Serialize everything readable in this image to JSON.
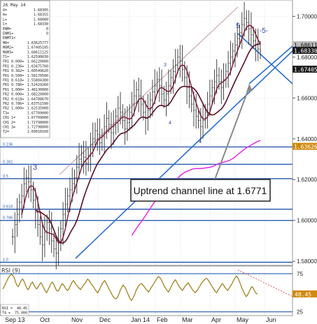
{
  "chart_data": {
    "type": "line",
    "instrument": "",
    "date_label": "26 May 14",
    "x_tick_labels": [
      "Sep 13",
      "Oct",
      "Nov",
      "Dec",
      "Jan 14",
      "Feb",
      "Mar",
      "Apr",
      "May",
      "Jun"
    ],
    "price_axis": {
      "ylim": [
        1.578,
        1.708
      ],
      "ticks": [
        "1.58000",
        "1.60000",
        "1.62000",
        "1.64000",
        "1.66000",
        "1.68000",
        "1.70000"
      ],
      "tick_values": [
        1.58,
        1.6,
        1.62,
        1.64,
        1.66,
        1.68,
        1.7
      ]
    },
    "price_tags": [
      {
        "label": "1.68611",
        "value": 1.6861,
        "style": "grey"
      },
      {
        "label": "1.68330",
        "value": 1.6833,
        "style": "dark"
      },
      {
        "label": "1.67405",
        "value": 1.6741,
        "style": "dark"
      },
      {
        "label": "1.63626",
        "value": 1.6363,
        "style": "orange"
      }
    ],
    "annotation": "Uptrend channel line at 1.6771",
    "wave_labels": [
      "3",
      "5",
      "-5-",
      "3",
      "4",
      "4"
    ],
    "fib_levels": [
      {
        "label": "0.236",
        "value": 1.636
      },
      {
        "label": "0.382",
        "value": 1.6275
      },
      {
        "label": "0.5",
        "value": 1.6205
      },
      {
        "label": "0.618",
        "value": 1.6055
      },
      {
        "label": "0.786",
        "value": 1.6
      },
      {
        "label": "1.0",
        "value": 1.5795
      }
    ],
    "info_panel": [
      {
        "k": "O=",
        "v": "1.68305"
      },
      {
        "k": "H=",
        "v": "1.68355"
      },
      {
        "k": "L=",
        "v": "1.68080"
      },
      {
        "k": "C=",
        "v": "1.68330"
      },
      {
        "k": "ENM=",
        "v": "0"
      },
      {
        "k": "ENM1=",
        "v": "0"
      },
      {
        "k": "ENMT1=",
        "v": ""
      },
      {
        "k": "MA=",
        "v": "1.63625777"
      },
      {
        "k": "MAM2=",
        "v": "1.67405105"
      },
      {
        "k": "MAM3=",
        "v": "1.68611125"
      },
      {
        "k": "T1=",
        "v": "1.62590030"
      },
      {
        "k": "FR1 0.000=",
        "v": "1.66220000"
      },
      {
        "k": "FR1 0.236=",
        "v": "1.63475760"
      },
      {
        "k": "FR1 0.382=",
        "v": "1.60549620"
      },
      {
        "k": "FR1 0.500=",
        "v": "1.58170500"
      },
      {
        "k": "FR1 0.618=",
        "v": "1.55804380"
      },
      {
        "k": "FR1 0.786=",
        "v": "1.52429260"
      },
      {
        "k": "FR1 1.000=",
        "v": "1.48130000"
      },
      {
        "k": "FR2 0.000=",
        "v": "1.68220000"
      },
      {
        "k": "FR2 0.618=",
        "v": "1.64708670"
      },
      {
        "k": "FR2 0.786=",
        "v": "1.63751590"
      },
      {
        "k": "FR2 1.000=",
        "v": "1.62535000"
      },
      {
        "k": "T3=",
        "v": "1.67709000"
      },
      {
        "k": "CH1 1=",
        "v": "1.67709000"
      },
      {
        "k": "CH1 2=",
        "v": "1.72798000"
      },
      {
        "k": "CH1 3=",
        "v": "1.72798000"
      },
      {
        "k": "T2=",
        "v": "1.69018160"
      }
    ],
    "rsi": {
      "title": "RSI (9)",
      "ylim": [
        20,
        85
      ],
      "ticks": [
        "25",
        "75"
      ],
      "tick_values": [
        25,
        75
      ],
      "current_tag": "48.45",
      "current_value": 48.45,
      "info": [
        {
          "k": "RSI =",
          "v": "48.45"
        },
        {
          "k": "T4 =",
          "v": "75.000"
        }
      ],
      "series": [
        55,
        58,
        62,
        66,
        70,
        72,
        74,
        73,
        70,
        64,
        60,
        58,
        62,
        66,
        68,
        65,
        60,
        56,
        54,
        58,
        62,
        64,
        60,
        57,
        55,
        58,
        61,
        63,
        60,
        56,
        52,
        50,
        54,
        58,
        62,
        64,
        61,
        57,
        53,
        52,
        55,
        59,
        62,
        60,
        57,
        54,
        53,
        56,
        60,
        64,
        66,
        63,
        60,
        58,
        56,
        54,
        57,
        60,
        62,
        65,
        68,
        66,
        63,
        60,
        58,
        55,
        52,
        50,
        53,
        57,
        61,
        64,
        66,
        63,
        59,
        55,
        52,
        48,
        45,
        43,
        42,
        44,
        48,
        53,
        57,
        60,
        58,
        55,
        50,
        46,
        42,
        40,
        43,
        47,
        52,
        56,
        59,
        61,
        62,
        60,
        58,
        55,
        53,
        51,
        54,
        57,
        60,
        63,
        66,
        69,
        71,
        70,
        67,
        63,
        59,
        56,
        53,
        51,
        54,
        58,
        62,
        65,
        67,
        64,
        60,
        57,
        55,
        53,
        56,
        59,
        61,
        63,
        60,
        57,
        54,
        52,
        50,
        52,
        55,
        58,
        61,
        64,
        66,
        68,
        69,
        67,
        64,
        61,
        58,
        55,
        52,
        50,
        53,
        56,
        59,
        62,
        60,
        57,
        55,
        53,
        56,
        59,
        62,
        66,
        69,
        72,
        70,
        66,
        61,
        56,
        52,
        48,
        45,
        47,
        51,
        55,
        58,
        56,
        52,
        49,
        48.45
      ]
    },
    "price_series": [
      1.592,
      1.598,
      1.603,
      1.609,
      1.612,
      1.618,
      1.621,
      1.619,
      1.615,
      1.61,
      1.604,
      1.598,
      1.592,
      1.588,
      1.594,
      1.599,
      1.596,
      1.59,
      1.586,
      1.584,
      1.589,
      1.596,
      1.603,
      1.608,
      1.612,
      1.615,
      1.618,
      1.621,
      1.626,
      1.63,
      1.633,
      1.631,
      1.628,
      1.632,
      1.637,
      1.64,
      1.644,
      1.642,
      1.638,
      1.641,
      1.646,
      1.65,
      1.647,
      1.643,
      1.646,
      1.651,
      1.655,
      1.653,
      1.649,
      1.645,
      1.648,
      1.653,
      1.657,
      1.661,
      1.664,
      1.661,
      1.657,
      1.653,
      1.65,
      1.654,
      1.659,
      1.663,
      1.666,
      1.669,
      1.666,
      1.662,
      1.659,
      1.662,
      1.666,
      1.67,
      1.673,
      1.676,
      1.68,
      1.678,
      1.674,
      1.67,
      1.665,
      1.661,
      1.657,
      1.654,
      1.651,
      1.649,
      1.646,
      1.649,
      1.653,
      1.657,
      1.661,
      1.665,
      1.668,
      1.671,
      1.668,
      1.665,
      1.669,
      1.673,
      1.677,
      1.68,
      1.683,
      1.686,
      1.689,
      1.692,
      1.696,
      1.699,
      1.697,
      1.694,
      1.691,
      1.688,
      1.686,
      1.684,
      1.683
    ]
  }
}
